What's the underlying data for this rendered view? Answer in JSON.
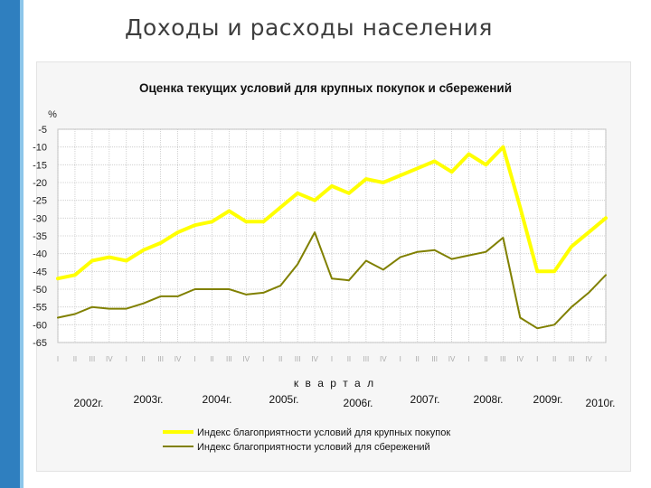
{
  "slide": {
    "title": "Доходы и расходы населения"
  },
  "colors": {
    "series1": "#ffff00",
    "series2": "#808000",
    "accent": "#2f7fbf"
  },
  "chart_data": {
    "type": "line",
    "title": "Оценка текущих условий для крупных покупок и сбережений",
    "ylabel": "%",
    "xlabel": "к в а р т а л",
    "ylim": [
      -65,
      -5
    ],
    "yticks": [
      "-5",
      "-10",
      "-15",
      "-20",
      "-25",
      "-30",
      "-35",
      "-40",
      "-45",
      "-50",
      "-55",
      "-60",
      "-65"
    ],
    "quarter_labels": [
      "I",
      "II",
      "III",
      "IV",
      "I",
      "II",
      "III",
      "IV",
      "I",
      "II",
      "III",
      "IV",
      "I",
      "II",
      "III",
      "IV",
      "I",
      "II",
      "III",
      "IV",
      "I",
      "II",
      "III",
      "IV",
      "I",
      "II",
      "III",
      "IV",
      "I",
      "II",
      "III",
      "IV",
      "I"
    ],
    "year_labels": [
      "2002г.",
      "2003г.",
      "2004г.",
      "2005г.",
      "2006г.",
      "2007г.",
      "2008г.",
      "2009г.",
      "2010г."
    ],
    "grid": true,
    "legend_position": "bottom",
    "series": [
      {
        "name": "Индекс благоприятности условий для крупных покупок",
        "values": [
          -47,
          -46,
          -42,
          -41,
          -42,
          -39,
          -37,
          -34,
          -32,
          -31,
          -28,
          -31,
          -31,
          -27,
          -23,
          -25,
          -21,
          -23,
          -19,
          -20,
          -18,
          -16,
          -14,
          -17,
          -12,
          -15,
          -10,
          -27,
          -45,
          -45,
          -38,
          -34,
          -30
        ]
      },
      {
        "name": "Индекс благоприятности условий для сбережений",
        "values": [
          -58,
          -57,
          -55,
          -55.5,
          -55.5,
          -54,
          -52,
          -52,
          -50,
          -50,
          -50,
          -51.5,
          -51,
          -49,
          -43,
          -34,
          -47,
          -47.5,
          -42,
          -44.5,
          -41,
          -39.5,
          -39,
          -41.5,
          -40.5,
          -39.5,
          -35.5,
          -58,
          -61,
          -60,
          -55,
          -51,
          -46
        ]
      }
    ]
  }
}
